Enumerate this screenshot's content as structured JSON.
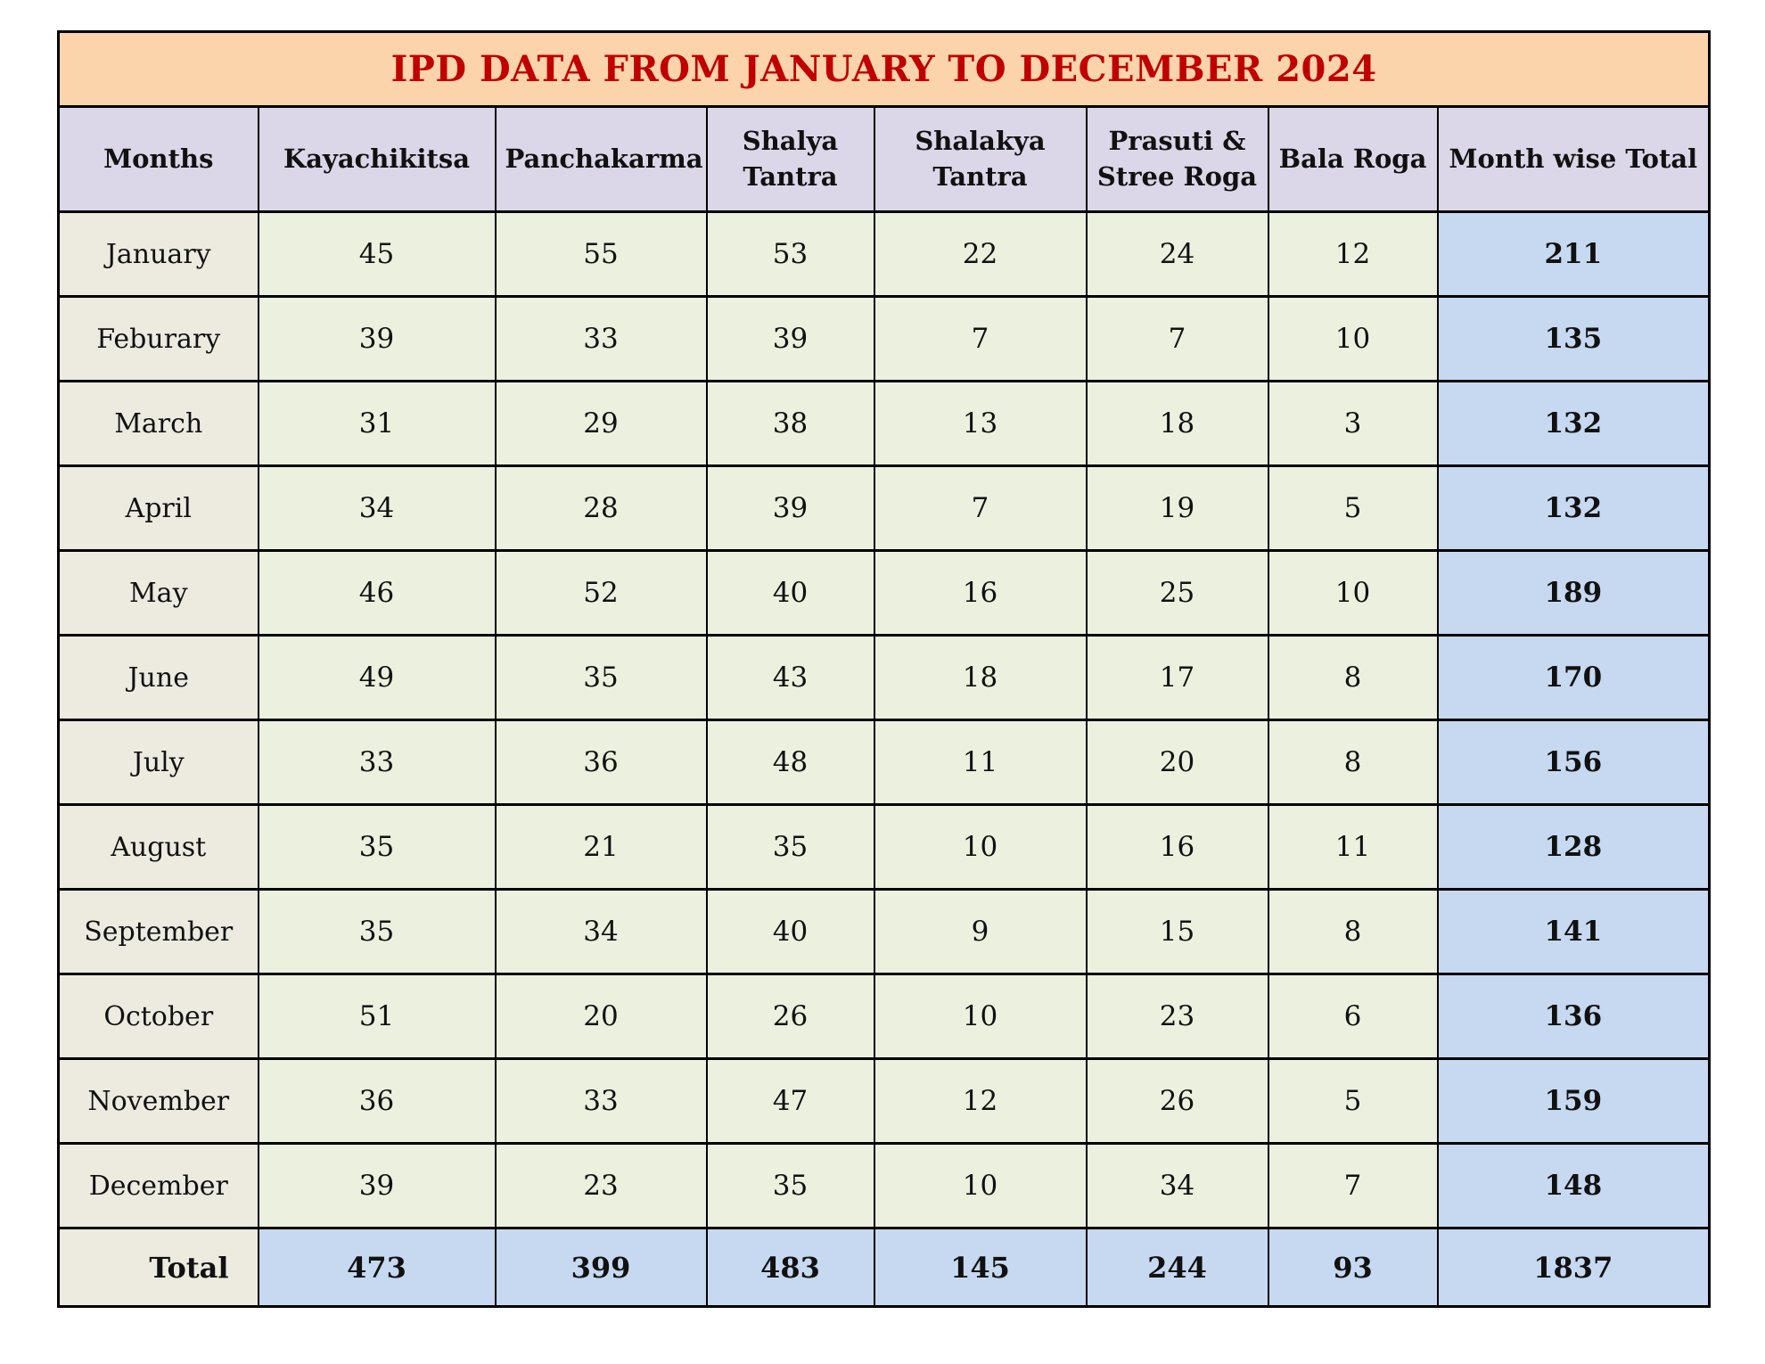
{
  "title": "IPD DATA FROM JANUARY TO DECEMBER 2024",
  "colors": {
    "title_bg": "#FCD4AB",
    "title_text": "#C00000",
    "header_bg": "#DBD7E8",
    "month_col_bg": "#EDEBE0",
    "data_cell_bg": "#EBF1DE",
    "total_bg": "#C6D9F1",
    "border": "#000000"
  },
  "table": {
    "columns": [
      "Months",
      "Kayachikitsa",
      "Panchakarma",
      "Shalya Tantra",
      "Shalakya Tantra",
      "Prasuti & Stree Roga",
      "Bala Roga",
      "Month wise Total"
    ],
    "rows": [
      {
        "month": "January",
        "values": [
          "45",
          "55",
          "53",
          "22",
          "24",
          "12"
        ],
        "total": "211"
      },
      {
        "month": "Feburary",
        "values": [
          "39",
          "33",
          "39",
          "7",
          "7",
          "10"
        ],
        "total": "135"
      },
      {
        "month": "March",
        "values": [
          "31",
          "29",
          "38",
          "13",
          "18",
          "3"
        ],
        "total": "132"
      },
      {
        "month": "April",
        "values": [
          "34",
          "28",
          "39",
          "7",
          "19",
          "5"
        ],
        "total": "132"
      },
      {
        "month": "May",
        "values": [
          "46",
          "52",
          "40",
          "16",
          "25",
          "10"
        ],
        "total": "189"
      },
      {
        "month": "June",
        "values": [
          "49",
          "35",
          "43",
          "18",
          "17",
          "8"
        ],
        "total": "170"
      },
      {
        "month": "July",
        "values": [
          "33",
          "36",
          "48",
          "11",
          "20",
          "8"
        ],
        "total": "156"
      },
      {
        "month": "August",
        "values": [
          "35",
          "21",
          "35",
          "10",
          "16",
          "11"
        ],
        "total": "128"
      },
      {
        "month": "September",
        "values": [
          "35",
          "34",
          "40",
          "9",
          "15",
          "8"
        ],
        "total": "141"
      },
      {
        "month": "October",
        "values": [
          "51",
          "20",
          "26",
          "10",
          "23",
          "6"
        ],
        "total": "136"
      },
      {
        "month": "November",
        "values": [
          "36",
          "33",
          "47",
          "12",
          "26",
          "5"
        ],
        "total": "159"
      },
      {
        "month": "December",
        "values": [
          "39",
          "23",
          "35",
          "10",
          "34",
          "7"
        ],
        "total": "148"
      }
    ],
    "total_row": {
      "label": "Total",
      "values": [
        "473",
        "399",
        "483",
        "145",
        "244",
        "93"
      ],
      "total": "1837"
    }
  }
}
